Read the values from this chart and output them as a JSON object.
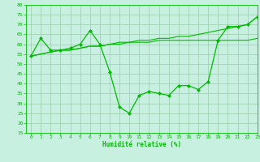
{
  "x": [
    0,
    1,
    2,
    3,
    4,
    5,
    6,
    7,
    8,
    9,
    10,
    11,
    12,
    13,
    14,
    15,
    16,
    17,
    18,
    19,
    20,
    21,
    22,
    23
  ],
  "y_main": [
    54,
    63,
    57,
    57,
    58,
    60,
    67,
    60,
    46,
    28,
    25,
    34,
    36,
    35,
    34,
    39,
    39,
    37,
    41,
    62,
    69,
    69,
    70,
    74
  ],
  "y_trend1": [
    54,
    55,
    56,
    57,
    57,
    58,
    59,
    59,
    60,
    61,
    61,
    62,
    62,
    63,
    63,
    64,
    64,
    65,
    66,
    67,
    68,
    69,
    70,
    74
  ],
  "y_trend2": [
    54,
    55,
    56,
    57,
    57,
    58,
    59,
    59,
    60,
    60,
    61,
    61,
    61,
    62,
    62,
    62,
    62,
    62,
    62,
    62,
    62,
    62,
    62,
    63
  ],
  "line_color": "#00bb00",
  "bg_color": "#c8f0e0",
  "grid_color": "#99ccaa",
  "xlabel": "Humidité relative (%)",
  "ylim": [
    15,
    80
  ],
  "xlim": [
    -0.5,
    23
  ],
  "yticks": [
    15,
    20,
    25,
    30,
    35,
    40,
    45,
    50,
    55,
    60,
    65,
    70,
    75,
    80
  ],
  "xticks": [
    0,
    1,
    2,
    3,
    4,
    5,
    6,
    7,
    8,
    9,
    10,
    11,
    12,
    13,
    14,
    15,
    16,
    17,
    18,
    19,
    20,
    21,
    22,
    23
  ]
}
